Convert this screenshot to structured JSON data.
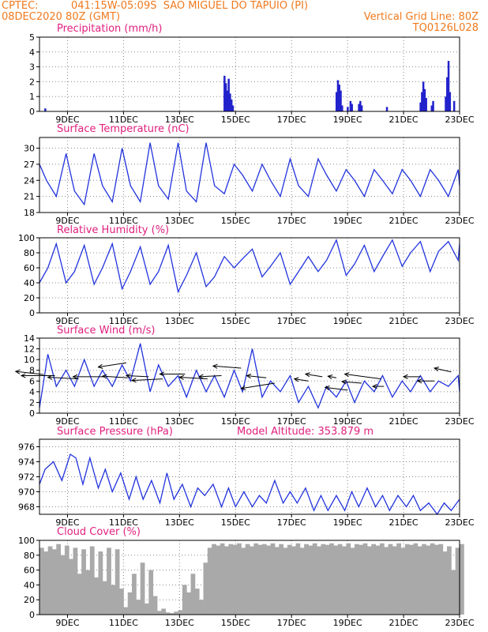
{
  "header": {
    "source": "CPTEC:",
    "location": "041:15W-05:09S  SAO MIGUEL DO TAPUIO (PI)",
    "run": "08DEC2020 80Z (GMT)",
    "grid_note": "Vertical Grid Line: 80Z",
    "code": "TQ0126L028"
  },
  "colors": {
    "header": "#f07a1e",
    "title": "#e0207f",
    "line": "#2233dd",
    "bar": "#2222cc",
    "cloud": "#a9a9a9",
    "arrow": "#000000"
  },
  "chart_data": [
    {
      "type": "bar",
      "title": "Precipitation (mm/h)",
      "ylim": [
        0,
        5
      ],
      "yticks": [
        0,
        1,
        2,
        3,
        4,
        5
      ],
      "xticks": [
        "9DEC",
        "11DEC",
        "13DEC",
        "15DEC",
        "17DEC",
        "19DEC",
        "21DEC",
        "23DEC"
      ],
      "grid": true,
      "events": [
        {
          "x": 0.2,
          "y": 0.2
        },
        {
          "x": 6.6,
          "y": 2.4
        },
        {
          "x": 6.65,
          "y": 1.9
        },
        {
          "x": 6.7,
          "y": 1.4
        },
        {
          "x": 6.75,
          "y": 2.2
        },
        {
          "x": 6.8,
          "y": 1.2
        },
        {
          "x": 6.85,
          "y": 0.8
        },
        {
          "x": 6.9,
          "y": 0.4
        },
        {
          "x": 10.6,
          "y": 1.3
        },
        {
          "x": 10.65,
          "y": 2.1
        },
        {
          "x": 10.7,
          "y": 1.8
        },
        {
          "x": 10.75,
          "y": 1.4
        },
        {
          "x": 10.8,
          "y": 0.4
        },
        {
          "x": 11.0,
          "y": 0.3
        },
        {
          "x": 11.1,
          "y": 0.7
        },
        {
          "x": 11.15,
          "y": 0.5
        },
        {
          "x": 11.4,
          "y": 0.5
        },
        {
          "x": 11.45,
          "y": 0.7
        },
        {
          "x": 11.5,
          "y": 0.4
        },
        {
          "x": 12.4,
          "y": 0.3
        },
        {
          "x": 13.6,
          "y": 0.6
        },
        {
          "x": 13.65,
          "y": 1.3
        },
        {
          "x": 13.7,
          "y": 2.0
        },
        {
          "x": 13.75,
          "y": 1.5
        },
        {
          "x": 13.8,
          "y": 0.9
        },
        {
          "x": 14.0,
          "y": 0.4
        },
        {
          "x": 14.05,
          "y": 0.7
        },
        {
          "x": 14.5,
          "y": 1.0
        },
        {
          "x": 14.55,
          "y": 2.3
        },
        {
          "x": 14.6,
          "y": 3.4
        },
        {
          "x": 14.65,
          "y": 1.3
        },
        {
          "x": 14.8,
          "y": 0.7
        }
      ]
    },
    {
      "type": "line",
      "title": "Surface Temperature (nC)",
      "ylim": [
        18,
        32
      ],
      "yticks": [
        18,
        21,
        24,
        27,
        30
      ],
      "xticks": [
        "9DEC",
        "11DEC",
        "13DEC",
        "15DEC",
        "17DEC",
        "19DEC",
        "21DEC",
        "23DEC"
      ],
      "grid": true,
      "series": [
        {
          "x": [
            0,
            0.25,
            0.6,
            0.95,
            1.25,
            1.6,
            1.95,
            2.25,
            2.6,
            2.95,
            3.25,
            3.6,
            3.95,
            4.25,
            4.6,
            4.95,
            5.25,
            5.6,
            5.95,
            6.25,
            6.6,
            6.95,
            7.25,
            7.6,
            7.95,
            8.25,
            8.6,
            8.95,
            9.25,
            9.6,
            9.95,
            10.25,
            10.6,
            10.95,
            11.25,
            11.6,
            11.95,
            12.25,
            12.6,
            12.95,
            13.25,
            13.6,
            13.95,
            14.25,
            14.6,
            14.95,
            15.0
          ],
          "y": [
            27,
            24,
            21,
            29,
            22,
            19.5,
            29,
            23,
            20,
            30,
            23,
            20,
            31,
            23,
            20.5,
            31,
            22,
            20,
            31,
            23,
            21.5,
            27,
            25,
            22,
            27,
            24,
            21,
            28,
            23,
            21,
            28,
            25,
            22,
            26,
            24,
            21,
            26,
            24,
            21.5,
            26,
            24,
            21,
            26,
            24,
            21,
            26,
            23
          ]
        }
      ]
    },
    {
      "type": "line",
      "title": "Relative Humidity (%)",
      "ylim": [
        0,
        100
      ],
      "yticks": [
        0,
        20,
        40,
        60,
        80,
        100
      ],
      "xticks": [
        "9DEC",
        "11DEC",
        "13DEC",
        "15DEC",
        "17DEC",
        "19DEC",
        "21DEC",
        "23DEC"
      ],
      "grid": true,
      "series": [
        {
          "x": [
            0,
            0.3,
            0.6,
            0.95,
            1.25,
            1.6,
            1.95,
            2.25,
            2.6,
            2.95,
            3.25,
            3.6,
            3.95,
            4.25,
            4.6,
            4.95,
            5.25,
            5.6,
            5.95,
            6.25,
            6.6,
            6.95,
            7.25,
            7.6,
            7.95,
            8.25,
            8.6,
            8.95,
            9.25,
            9.6,
            9.95,
            10.25,
            10.6,
            10.95,
            11.25,
            11.6,
            11.95,
            12.25,
            12.6,
            12.95,
            13.25,
            13.6,
            13.95,
            14.25,
            14.6,
            14.95,
            15.0
          ],
          "y": [
            40,
            60,
            92,
            40,
            55,
            90,
            38,
            60,
            92,
            32,
            55,
            88,
            38,
            55,
            90,
            28,
            50,
            80,
            35,
            48,
            75,
            60,
            72,
            85,
            48,
            62,
            80,
            38,
            55,
            75,
            55,
            70,
            97,
            50,
            65,
            90,
            55,
            75,
            97,
            62,
            80,
            95,
            55,
            82,
            95,
            70,
            92
          ]
        }
      ]
    },
    {
      "type": "line",
      "title": "Surface Wind (m/s)",
      "ylim": [
        0,
        14
      ],
      "yticks": [
        0,
        2,
        4,
        6,
        8,
        10,
        12,
        14
      ],
      "xticks": [
        "9DEC",
        "11DEC",
        "13DEC",
        "15DEC",
        "17DEC",
        "19DEC",
        "21DEC",
        "23DEC"
      ],
      "grid": true,
      "series": [
        {
          "x": [
            0,
            0.3,
            0.6,
            0.95,
            1.25,
            1.6,
            1.95,
            2.25,
            2.6,
            2.95,
            3.25,
            3.6,
            3.95,
            4.25,
            4.6,
            4.95,
            5.25,
            5.6,
            5.95,
            6.25,
            6.6,
            6.95,
            7.25,
            7.6,
            7.95,
            8.25,
            8.6,
            8.95,
            9.25,
            9.6,
            9.95,
            10.25,
            10.6,
            10.95,
            11.25,
            11.6,
            11.95,
            12.25,
            12.6,
            12.95,
            13.25,
            13.6,
            13.95,
            14.25,
            14.6,
            14.95,
            15.0
          ],
          "y": [
            1,
            11,
            5,
            8,
            5,
            10,
            5,
            8,
            5,
            9,
            6,
            13,
            4,
            9,
            5,
            7,
            3,
            8,
            4,
            7,
            3,
            8,
            4,
            12,
            3,
            6,
            4,
            7,
            2,
            5,
            1,
            5,
            3,
            6,
            2,
            6,
            4,
            7,
            3,
            6,
            4,
            7,
            4,
            6,
            5,
            7,
            4
          ]
        }
      ],
      "vectors": [
        {
          "x": 0.15,
          "y": 7.2,
          "dx": 1.0,
          "dy": -0.6
        },
        {
          "x": 0.55,
          "y": 7.0,
          "dx": 1.2,
          "dy": 0.0
        },
        {
          "x": 1.4,
          "y": 6.4,
          "dx": 1.1,
          "dy": -0.3
        },
        {
          "x": 2.3,
          "y": 6.8,
          "dx": 1.1,
          "dy": 0.0
        },
        {
          "x": 3.15,
          "y": 6.6,
          "dx": 0.9,
          "dy": -0.3
        },
        {
          "x": 3.1,
          "y": 9.4,
          "dx": 1.0,
          "dy": 0.8
        },
        {
          "x": 3.9,
          "y": 6.8,
          "dx": 0.8,
          "dy": -0.2
        },
        {
          "x": 4.4,
          "y": 6.4,
          "dx": 1.1,
          "dy": 0.3
        },
        {
          "x": 5.2,
          "y": 7.3,
          "dx": 0.9,
          "dy": 0.0
        },
        {
          "x": 6.0,
          "y": 6.4,
          "dx": 1.0,
          "dy": -0.3
        },
        {
          "x": 6.5,
          "y": 7.0,
          "dx": 0.8,
          "dy": 0.2
        },
        {
          "x": 7.2,
          "y": 8.4,
          "dx": 1.0,
          "dy": -0.4
        },
        {
          "x": 8.1,
          "y": 6.6,
          "dx": 0.7,
          "dy": -0.4
        },
        {
          "x": 8.4,
          "y": 5.6,
          "dx": 1.2,
          "dy": 1.0
        },
        {
          "x": 9.6,
          "y": 6.0,
          "dx": 0.5,
          "dy": -0.4
        },
        {
          "x": 10.1,
          "y": 6.8,
          "dx": 0.6,
          "dy": -0.5
        },
        {
          "x": 10.6,
          "y": 6.6,
          "dx": 0.3,
          "dy": -0.3
        },
        {
          "x": 11.0,
          "y": 4.3,
          "dx": 0.8,
          "dy": -0.5
        },
        {
          "x": 11.5,
          "y": 5.6,
          "dx": 0.7,
          "dy": -0.3
        },
        {
          "x": 12.2,
          "y": 6.4,
          "dx": 1.3,
          "dy": -0.9
        },
        {
          "x": 12.3,
          "y": 5.0,
          "dx": 0.4,
          "dy": 0.0
        },
        {
          "x": 13.6,
          "y": 6.8,
          "dx": 0.6,
          "dy": 0.0
        },
        {
          "x": 14.1,
          "y": 6.0,
          "dx": 0.6,
          "dy": 0.0
        },
        {
          "x": 14.7,
          "y": 7.7,
          "dx": 0.6,
          "dy": -0.7
        }
      ]
    },
    {
      "type": "line",
      "title": "Surface Pressure (hPa)",
      "annotation": "Model Altitude: 353.879 m",
      "ylim": [
        967,
        977
      ],
      "yticks": [
        968,
        970,
        972,
        974,
        976
      ],
      "xticks": [
        "9DEC",
        "11DEC",
        "13DEC",
        "15DEC",
        "17DEC",
        "19DEC",
        "21DEC",
        "23DEC"
      ],
      "grid": true,
      "series": [
        {
          "x": [
            0,
            0.2,
            0.5,
            0.8,
            1.1,
            1.3,
            1.55,
            1.8,
            2.1,
            2.35,
            2.6,
            2.9,
            3.2,
            3.45,
            3.7,
            4.0,
            4.3,
            4.55,
            4.8,
            5.1,
            5.4,
            5.65,
            5.9,
            6.2,
            6.5,
            6.75,
            7.0,
            7.3,
            7.6,
            7.85,
            8.1,
            8.4,
            8.7,
            8.95,
            9.2,
            9.5,
            9.8,
            10.05,
            10.3,
            10.6,
            10.9,
            11.15,
            11.4,
            11.7,
            12.0,
            12.25,
            12.5,
            12.8,
            13.1,
            13.35,
            13.6,
            13.9,
            14.2,
            14.45,
            14.7,
            15.0
          ],
          "y": [
            971,
            973,
            974,
            971.5,
            975,
            974.5,
            971,
            974.5,
            970.5,
            973,
            970,
            972.5,
            969,
            972,
            969,
            971.5,
            968.5,
            972.5,
            969,
            971,
            968,
            970.5,
            969.5,
            971,
            968,
            970.5,
            968,
            970,
            968,
            969.5,
            968.5,
            971.5,
            968.5,
            970,
            968.5,
            970.5,
            967.5,
            969.5,
            967.5,
            969.5,
            967.5,
            970,
            968,
            970.5,
            968,
            969.5,
            967.5,
            969.5,
            968,
            969.5,
            967.5,
            968.5,
            967,
            968.5,
            967.5,
            969
          ]
        }
      ]
    },
    {
      "type": "area",
      "title": "Cloud Cover (%)",
      "ylim": [
        0,
        100
      ],
      "yticks": [
        0,
        20,
        40,
        60,
        80,
        100
      ],
      "xticks": [
        "9DEC",
        "11DEC",
        "13DEC",
        "15DEC",
        "17DEC",
        "19DEC",
        "21DEC",
        "23DEC"
      ],
      "grid": true,
      "x": [
        0,
        0.15,
        0.3,
        0.45,
        0.6,
        0.75,
        0.9,
        1.05,
        1.2,
        1.35,
        1.5,
        1.65,
        1.8,
        1.95,
        2.1,
        2.25,
        2.4,
        2.55,
        2.7,
        2.85,
        3.0,
        3.15,
        3.3,
        3.45,
        3.6,
        3.75,
        3.9,
        4.05,
        4.2,
        4.35,
        4.5,
        4.65,
        4.8,
        4.95,
        5.1,
        5.25,
        5.4,
        5.55,
        5.7,
        5.85,
        6.0,
        6.15,
        6.3,
        6.45,
        6.6,
        6.75,
        6.9,
        7.05,
        7.2,
        7.35,
        7.5,
        7.65,
        7.8,
        7.95,
        8.1,
        8.25,
        8.4,
        8.55,
        8.7,
        8.85,
        9.0,
        9.15,
        9.3,
        9.45,
        9.6,
        9.75,
        9.9,
        10.05,
        10.2,
        10.35,
        10.5,
        10.65,
        10.8,
        10.95,
        11.1,
        11.25,
        11.4,
        11.55,
        11.7,
        11.85,
        12.0,
        12.15,
        12.3,
        12.45,
        12.6,
        12.75,
        12.9,
        13.05,
        13.2,
        13.35,
        13.5,
        13.65,
        13.8,
        13.95,
        14.1,
        14.25,
        14.4,
        14.55,
        14.7,
        14.85,
        15.0
      ],
      "values": [
        90,
        85,
        92,
        88,
        95,
        80,
        93,
        75,
        90,
        55,
        88,
        60,
        92,
        50,
        85,
        45,
        90,
        40,
        88,
        35,
        10,
        30,
        55,
        20,
        70,
        15,
        60,
        25,
        5,
        8,
        3,
        2,
        4,
        6,
        40,
        30,
        55,
        35,
        20,
        70,
        90,
        95,
        93,
        96,
        92,
        95,
        94,
        96,
        90,
        95,
        92,
        96,
        94,
        95,
        93,
        96,
        91,
        95,
        90,
        94,
        92,
        96,
        90,
        95,
        93,
        96,
        92,
        95,
        94,
        96,
        93,
        95,
        92,
        96,
        90,
        95,
        94,
        96,
        92,
        95,
        93,
        96,
        91,
        95,
        92,
        96,
        90,
        95,
        94,
        96,
        92,
        95,
        93,
        96,
        94,
        95,
        85,
        92,
        60,
        90,
        95
      ]
    }
  ]
}
